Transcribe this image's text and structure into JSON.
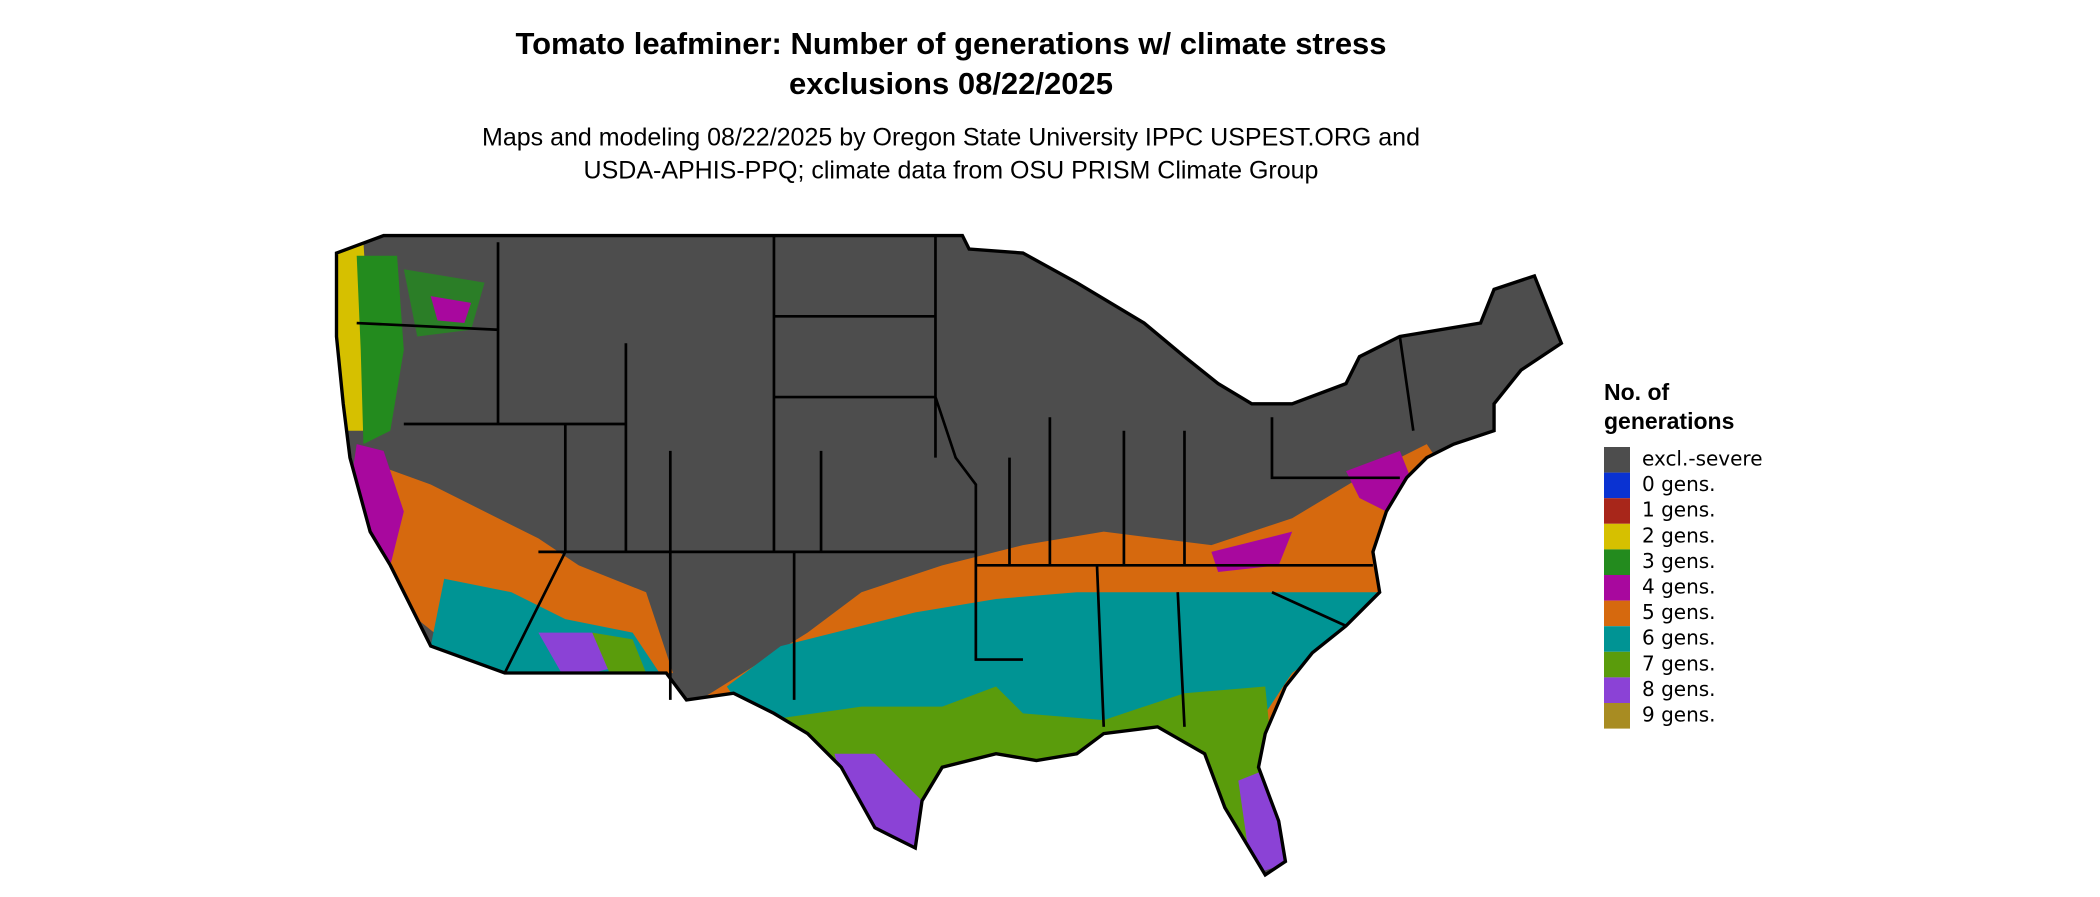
{
  "header": {
    "title_lines": [
      "Tomato leafminer: Number of generations w/ climate stress",
      "exclusions 08/22/2025"
    ],
    "subtitle_lines": [
      "Maps and modeling 08/22/2025 by Oregon State University IPPC USPEST.ORG and",
      "USDA-APHIS-PPQ; climate data from OSU PRISM Climate Group"
    ]
  },
  "legend": {
    "title_lines": [
      "No. of",
      "generations"
    ],
    "items": [
      {
        "label": "excl.-severe",
        "color": "#4d4d4d"
      },
      {
        "label": "0 gens.",
        "color": "#0a32d2"
      },
      {
        "label": "1 gens.",
        "color": "#a8261a"
      },
      {
        "label": "2 gens.",
        "color": "#d6c000"
      },
      {
        "label": "3 gens.",
        "color": "#238b1e"
      },
      {
        "label": "4 gens.",
        "color": "#a8089e"
      },
      {
        "label": "5 gens.",
        "color": "#d6690e"
      },
      {
        "label": "6 gens.",
        "color": "#009494"
      },
      {
        "label": "7 gens.",
        "color": "#5a9c0c"
      },
      {
        "label": "8 gens.",
        "color": "#8b42d6"
      },
      {
        "label": "9 gens.",
        "color": "#a88c22"
      }
    ]
  }
}
